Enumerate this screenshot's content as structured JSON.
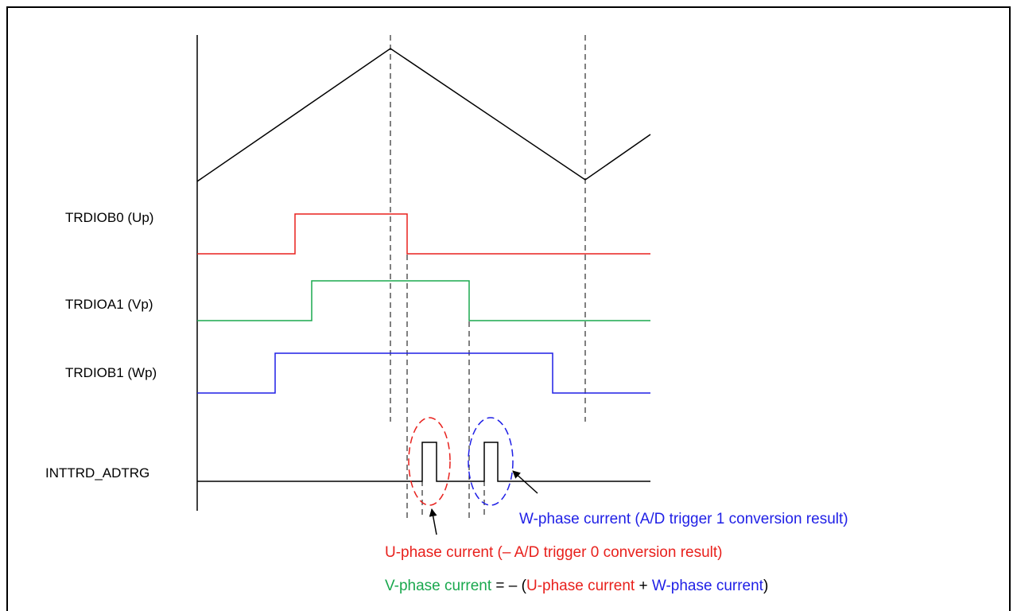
{
  "colors": {
    "carrier": "#000000",
    "u_phase": "#e8211d",
    "v_phase": "#1aa84e",
    "w_phase": "#1f1fe6",
    "trigger": "#000000",
    "arrow": "#000000"
  },
  "signals": [
    {
      "id": "up",
      "label": "TRDIOB0 (Up)",
      "color_key": "u_phase"
    },
    {
      "id": "vp",
      "label": "TRDIOA1 (Vp)",
      "color_key": "v_phase"
    },
    {
      "id": "wp",
      "label": "TRDIOB1 (Wp)",
      "color_key": "w_phase"
    },
    {
      "id": "trg",
      "label": "INTTRD_ADTRG",
      "color_key": "trigger"
    }
  ],
  "annotations": {
    "w_current": {
      "text": "W-phase current (A/D trigger 1 conversion result)",
      "color_key": "w_phase"
    },
    "u_current": {
      "text": "U-phase current (– A/D trigger 0 conversion result)",
      "color_key": "u_phase"
    },
    "v_formula": {
      "part1": "V-phase current",
      "part2": " = – (",
      "part3": "U-phase current",
      "part4": " + ",
      "part5": "W-phase current",
      "part6": ")"
    }
  }
}
